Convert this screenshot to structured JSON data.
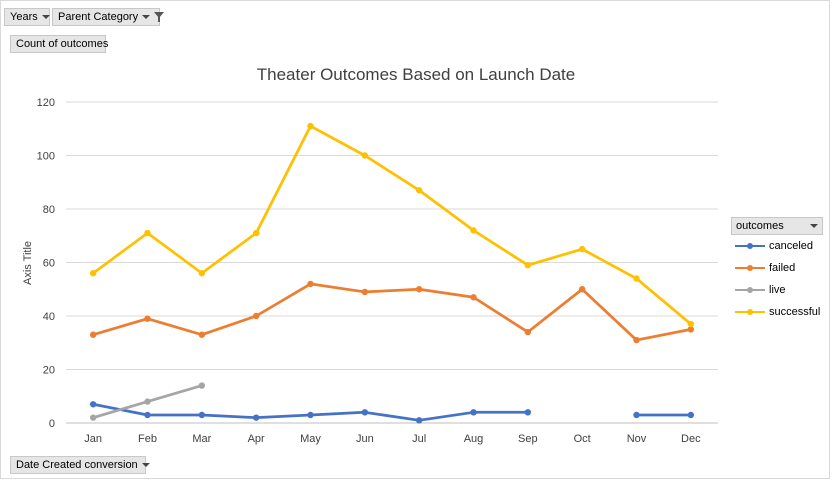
{
  "pivot": {
    "filter_years": "Years",
    "filter_parent_category": "Parent Category",
    "value_field": "Count of outcomes",
    "axis_field": "Date Created conversion"
  },
  "legend": {
    "header": "outcomes"
  },
  "chart_data": {
    "type": "line",
    "title": "Theater Outcomes Based on Launch Date",
    "xlabel": "",
    "ylabel": "Axis Title",
    "ylim": [
      0,
      120
    ],
    "yticks": [
      0,
      20,
      40,
      60,
      80,
      100,
      120
    ],
    "grid": true,
    "legend_position": "right",
    "categories": [
      "Jan",
      "Feb",
      "Mar",
      "Apr",
      "May",
      "Jun",
      "Jul",
      "Aug",
      "Sep",
      "Oct",
      "Nov",
      "Dec"
    ],
    "series": [
      {
        "name": "canceled",
        "color": "#4472c4",
        "values": [
          7,
          3,
          3,
          2,
          3,
          4,
          1,
          4,
          4,
          null,
          3,
          3
        ]
      },
      {
        "name": "failed",
        "color": "#ed7d31",
        "values": [
          33,
          39,
          33,
          40,
          52,
          49,
          50,
          47,
          34,
          50,
          31,
          35
        ]
      },
      {
        "name": "live",
        "color": "#a5a5a5",
        "values": [
          2,
          8,
          14,
          null,
          null,
          null,
          null,
          null,
          null,
          null,
          null,
          null
        ]
      },
      {
        "name": "successful",
        "color": "#ffc000",
        "values": [
          56,
          71,
          56,
          71,
          111,
          100,
          87,
          72,
          59,
          65,
          54,
          37
        ]
      }
    ]
  }
}
